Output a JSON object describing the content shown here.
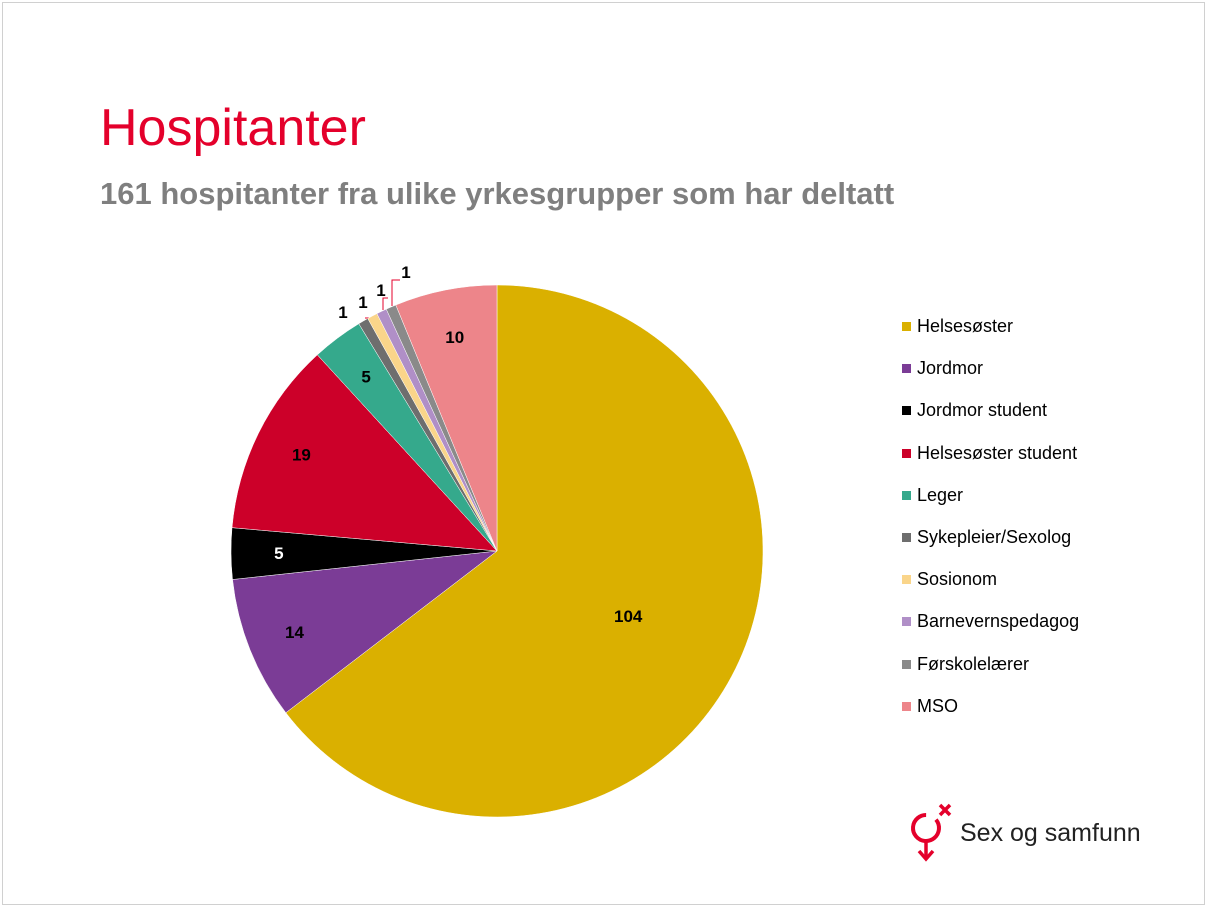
{
  "title": "Hospitanter",
  "subtitle": "161 hospitanter fra ulike yrkesgrupper som har deltatt",
  "logo_text": "Sex og samfunn",
  "chart_data": {
    "type": "pie",
    "start_angle": "12 o'clock",
    "direction": "clockwise",
    "legend_position": "right",
    "categories": [
      "Helsesøster",
      "Jordmor",
      "Jordmor student",
      "Helsesøster student",
      "Leger",
      "Sykepleier/Sexolog",
      "Sosionom",
      "Barnevernspedagog",
      "Førskolelærer",
      "MSO"
    ],
    "values": [
      104,
      14,
      5,
      19,
      5,
      1,
      1,
      1,
      1,
      10
    ],
    "labels": [
      "104",
      "14",
      "5",
      "19",
      "5",
      "1",
      "1",
      "1",
      "1",
      "10"
    ],
    "colors": [
      "#dab000",
      "#7b3c96",
      "#000000",
      "#cc0029",
      "#35a98c",
      "#6e6e6e",
      "#fad58a",
      "#b08fc7",
      "#8a8a8a",
      "#ed858a"
    ],
    "label_colors": [
      "#000000",
      "#000000",
      "#ffffff",
      "#000000",
      "#000000",
      "#000000",
      "#000000",
      "#000000",
      "#000000",
      "#000000"
    ]
  }
}
